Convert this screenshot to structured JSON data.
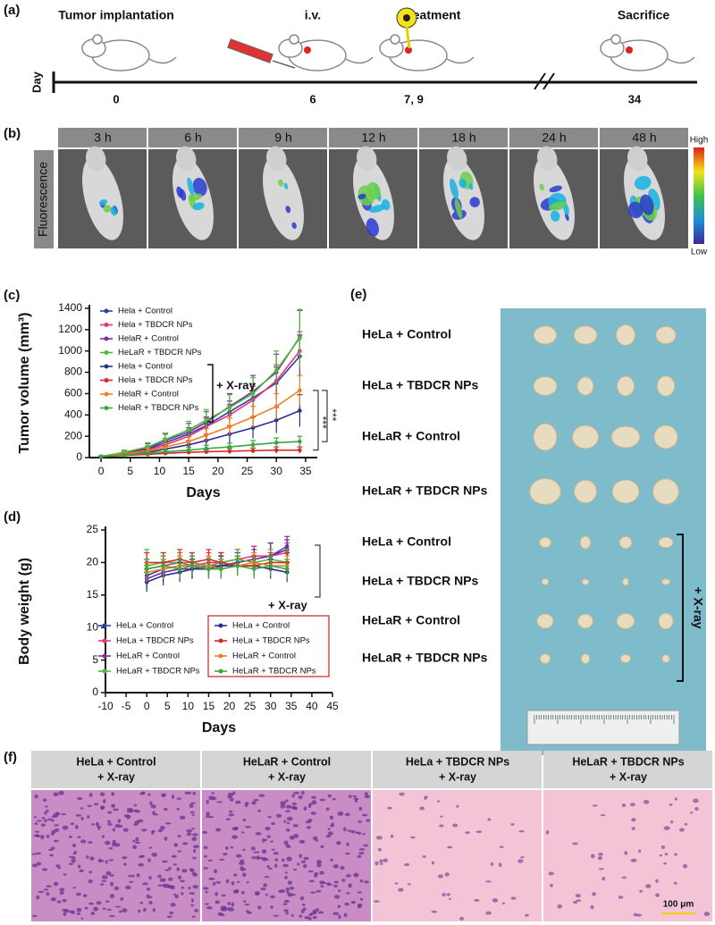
{
  "panel_a": {
    "label": "(a)",
    "axis_label": "Day",
    "events": [
      {
        "title": "Tumor implantation",
        "day": "0"
      },
      {
        "title": "i.v.",
        "day": "6"
      },
      {
        "title": "Treatment",
        "day": "7, 9"
      },
      {
        "title": "Sacrifice",
        "day": "34"
      }
    ]
  },
  "panel_b": {
    "label": "(b)",
    "row_label": "Fluorescence",
    "times": [
      "3 h",
      "6 h",
      "9 h",
      "12 h",
      "18 h",
      "24 h",
      "48 h"
    ],
    "scale_high": "High",
    "scale_low": "Low"
  },
  "chart_data": [
    {
      "type": "line",
      "label": "(c)",
      "xlabel": "Days",
      "ylabel": "Tumor volume (mm³)",
      "x": [
        0,
        4,
        8,
        11,
        15,
        18,
        22,
        26,
        30,
        34
      ],
      "xlim": [
        -2,
        37
      ],
      "xticks": [
        0,
        5,
        10,
        15,
        20,
        25,
        30,
        35
      ],
      "ylim": [
        0,
        1400
      ],
      "yticks": [
        0,
        200,
        400,
        600,
        800,
        1000,
        1200,
        1400
      ],
      "series": [
        {
          "name": "Hela + Control",
          "color": "#2e3f9e",
          "values": [
            10,
            40,
            80,
            140,
            220,
            300,
            430,
            560,
            700,
            950
          ],
          "errors": [
            5,
            15,
            30,
            40,
            60,
            80,
            100,
            130,
            150,
            200
          ]
        },
        {
          "name": "Hela + TBDCR NPs",
          "color": "#e8337a",
          "values": [
            10,
            35,
            70,
            120,
            200,
            290,
            400,
            540,
            720,
            1000
          ],
          "errors": [
            5,
            15,
            30,
            40,
            60,
            80,
            100,
            130,
            150,
            180
          ]
        },
        {
          "name": "HelaR + Control",
          "color": "#7b2f9e",
          "values": [
            10,
            45,
            90,
            160,
            240,
            330,
            480,
            620,
            800,
            1130
          ],
          "errors": [
            5,
            20,
            40,
            60,
            80,
            100,
            120,
            150,
            170,
            250
          ]
        },
        {
          "name": "HeLaR + TBDCR NPs",
          "color": "#4cbb3a",
          "values": [
            10,
            50,
            100,
            170,
            260,
            350,
            470,
            600,
            820,
            1120
          ],
          "errors": [
            5,
            20,
            40,
            60,
            80,
            100,
            120,
            150,
            180,
            270
          ]
        },
        {
          "name": "Hela + Control",
          "color": "#2b2f8f",
          "values": [
            10,
            30,
            50,
            80,
            120,
            160,
            220,
            280,
            350,
            440
          ],
          "errors": [
            5,
            10,
            20,
            30,
            40,
            60,
            80,
            100,
            120,
            150
          ]
        },
        {
          "name": "Hela + TBDCR NPs",
          "color": "#d62828",
          "values": [
            10,
            20,
            30,
            40,
            50,
            55,
            60,
            65,
            70,
            70
          ],
          "errors": [
            5,
            8,
            10,
            15,
            20,
            20,
            25,
            25,
            30,
            30
          ]
        },
        {
          "name": "HelaR + Control",
          "color": "#f07f22",
          "values": [
            10,
            35,
            60,
            100,
            150,
            210,
            290,
            380,
            480,
            630
          ],
          "errors": [
            5,
            12,
            25,
            35,
            45,
            60,
            80,
            100,
            120,
            140
          ]
        },
        {
          "name": "HelaR + TBDCR NPs",
          "color": "#3aa640",
          "values": [
            10,
            25,
            40,
            55,
            70,
            85,
            100,
            120,
            140,
            150
          ],
          "errors": [
            5,
            10,
            15,
            20,
            25,
            30,
            35,
            40,
            45,
            50
          ]
        }
      ],
      "annotations": [
        "+ X-ray",
        "***",
        "***"
      ]
    },
    {
      "type": "line",
      "label": "(d)",
      "xlabel": "Days",
      "ylabel": "Body weight (g)",
      "x": [
        0,
        4,
        8,
        11,
        15,
        18,
        22,
        26,
        30,
        34
      ],
      "xlim": [
        -10,
        45
      ],
      "xticks": [
        -10,
        -5,
        0,
        5,
        10,
        15,
        20,
        25,
        30,
        35,
        40,
        45
      ],
      "ylim": [
        0,
        25
      ],
      "yticks": [
        0,
        5,
        10,
        15,
        20,
        25
      ],
      "series": [
        {
          "name": "HeLa + Control",
          "color": "#2e3f9e",
          "values": [
            18,
            19,
            19.5,
            19.5,
            19,
            19.5,
            20,
            20.5,
            21,
            22
          ],
          "errors": [
            1.5,
            1.5,
            1.5,
            1.5,
            1.5,
            1.5,
            1.5,
            2,
            2,
            1.5
          ]
        },
        {
          "name": "HeLa + TBDCR NPs",
          "color": "#e8337a",
          "values": [
            19,
            19.5,
            20,
            19.5,
            20,
            20,
            20.5,
            21,
            21,
            21.5
          ],
          "errors": [
            1.5,
            1.5,
            1.5,
            1.5,
            1.5,
            1.5,
            1.5,
            1.5,
            2,
            1.5
          ]
        },
        {
          "name": "HeLaR + Control",
          "color": "#7b2f9e",
          "values": [
            17.5,
            18.5,
            19,
            19,
            19.5,
            19.5,
            20,
            20.5,
            21,
            22.5
          ],
          "errors": [
            1.5,
            1.5,
            1.5,
            1.5,
            1.5,
            1.5,
            1.5,
            1.5,
            2,
            1.5
          ]
        },
        {
          "name": "HeLaR + TBDCR NPs",
          "color": "#4cbb3a",
          "values": [
            19.5,
            20,
            20,
            20,
            19.5,
            20,
            20.5,
            20,
            20.5,
            20
          ],
          "errors": [
            2.5,
            1.5,
            1.5,
            1.5,
            1.5,
            1.5,
            1.5,
            1.5,
            1.5,
            2
          ]
        },
        {
          "name": "HeLa + Control",
          "color": "#2b2f8f",
          "values": [
            17,
            18,
            18.5,
            19,
            19,
            19.5,
            19.5,
            19.5,
            19,
            18.5
          ],
          "errors": [
            1.5,
            1.5,
            1.5,
            1.5,
            1.5,
            1.5,
            1.5,
            1.5,
            1.5,
            1.5
          ]
        },
        {
          "name": "HeLa + TBDCR NPs",
          "color": "#d62828",
          "values": [
            20,
            20,
            20.5,
            20,
            20.5,
            20,
            19.5,
            19.5,
            20,
            20
          ],
          "errors": [
            1.5,
            1.5,
            1.5,
            1.5,
            1.5,
            1.5,
            1.5,
            1.5,
            1.5,
            1.5
          ]
        },
        {
          "name": "HeLaR + Control",
          "color": "#f07f22",
          "values": [
            18.5,
            19,
            19.5,
            19.5,
            19.5,
            19,
            19.5,
            20,
            19.5,
            19.5
          ],
          "errors": [
            1.5,
            1.5,
            1.5,
            1.5,
            1.5,
            1.5,
            1.5,
            1.5,
            1.5,
            1.5
          ]
        },
        {
          "name": "HeLaR + TBDCR NPs",
          "color": "#3aa640",
          "values": [
            19,
            19.5,
            19,
            19.5,
            19,
            19,
            19.5,
            19,
            19.5,
            19
          ],
          "errors": [
            1.5,
            1.5,
            1.5,
            1.5,
            1.5,
            1.5,
            1.5,
            1.5,
            1.5,
            1.5
          ]
        }
      ],
      "annotations": [
        "+ X-ray"
      ]
    }
  ],
  "panel_e": {
    "label": "(e)",
    "rows": [
      "HeLa + Control",
      "HeLa + TBDCR NPs",
      "HeLaR + Control",
      "HeLaR + TBDCR NPs",
      "HeLa + Control",
      "HeLa + TBDCR NPs",
      "HeLaR + Control",
      "HeLaR + TBDCR NPs"
    ],
    "bracket": "+ X-ray"
  },
  "panel_f": {
    "label": "(f)",
    "headers": [
      [
        "HeLa + Control",
        "+ X-ray"
      ],
      [
        "HeLaR + Control",
        "+ X-ray"
      ],
      [
        "HeLa + TBDCR NPs",
        "+ X-ray"
      ],
      [
        "HeLaR + TBDCR NPs",
        "+ X-ray"
      ]
    ],
    "scale_bar": "100 μm"
  }
}
